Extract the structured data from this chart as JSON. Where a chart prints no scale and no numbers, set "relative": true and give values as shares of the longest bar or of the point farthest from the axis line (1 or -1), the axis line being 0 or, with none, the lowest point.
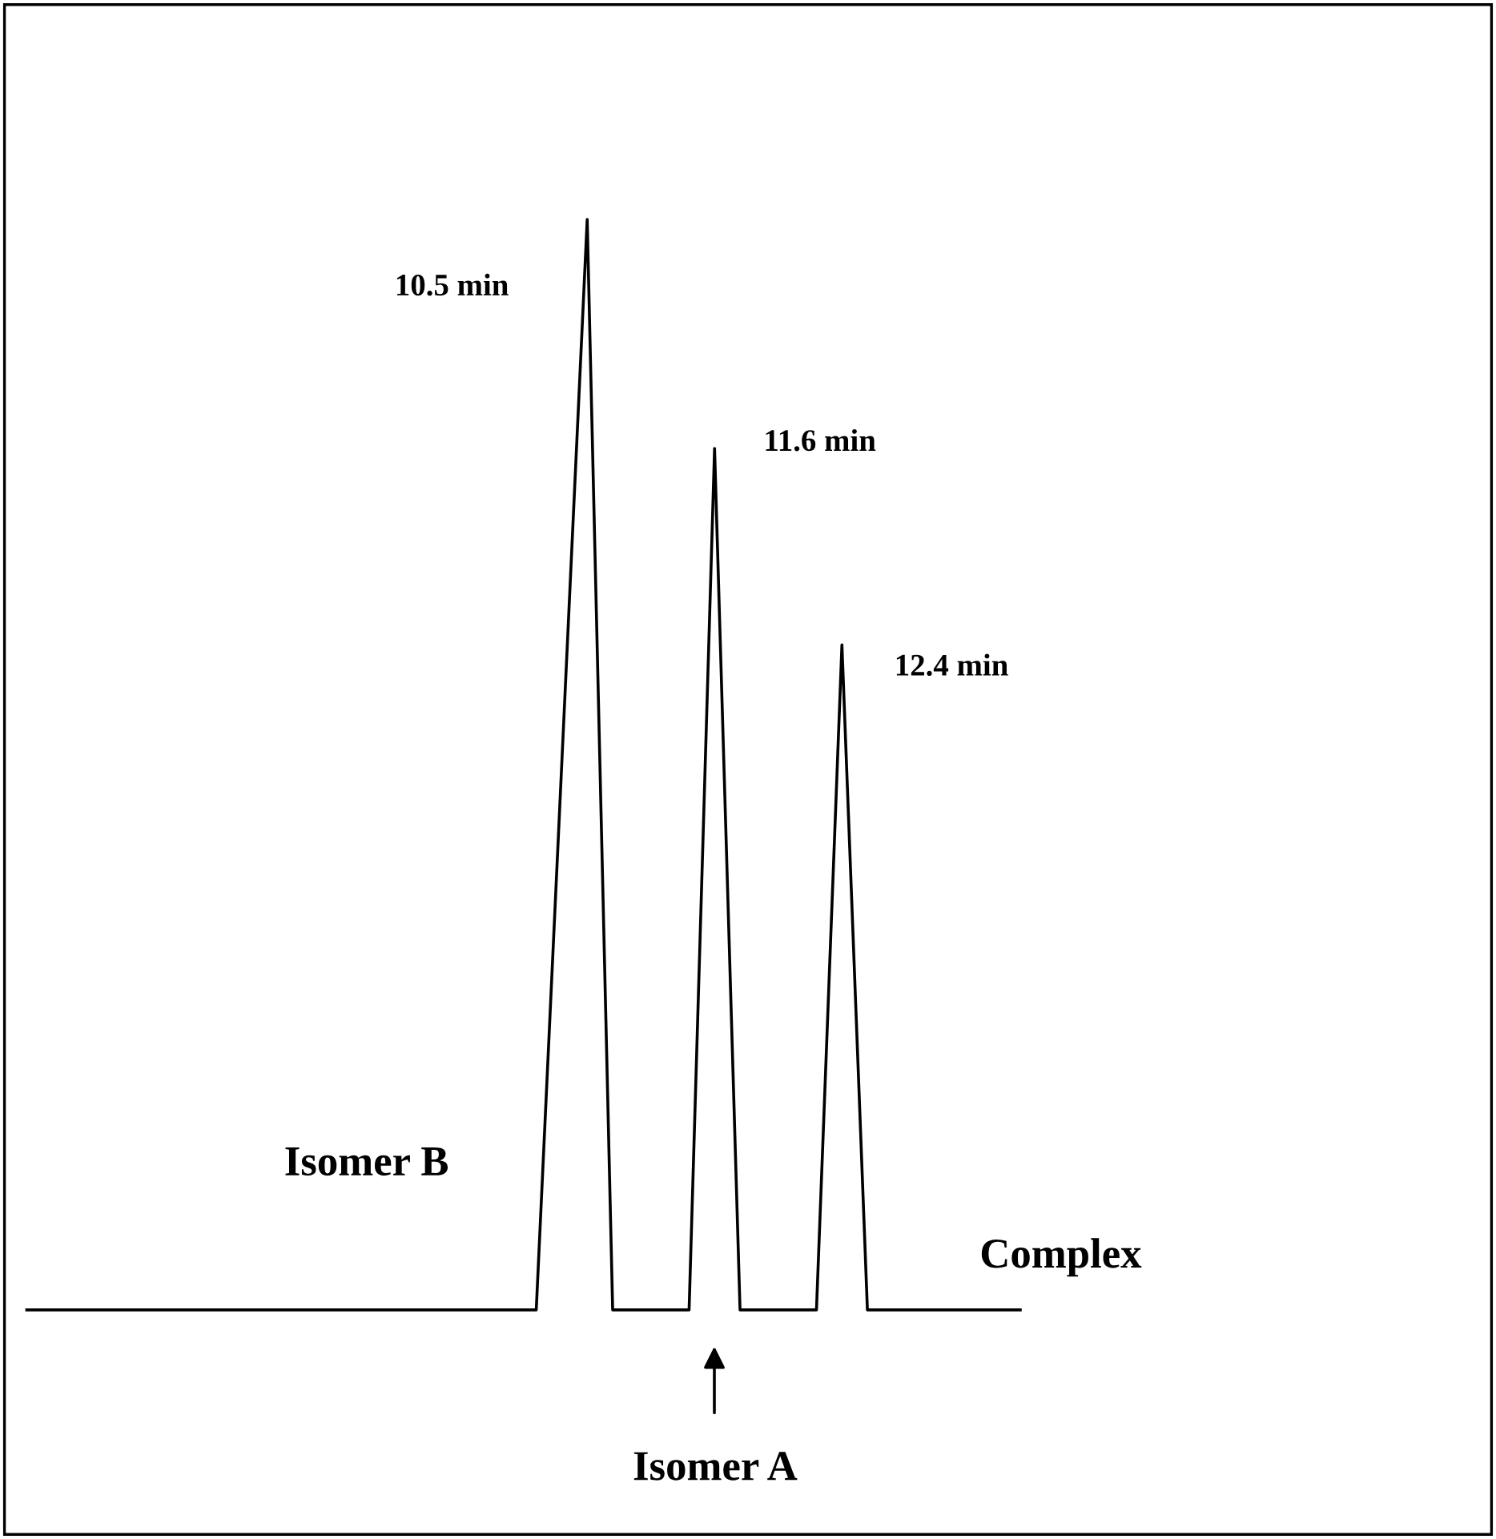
{
  "chart_data": {
    "type": "line",
    "relative": true,
    "categories": [
      null,
      null,
      null,
      null,
      null,
      null,
      null,
      null,
      null,
      null,
      null,
      null,
      null,
      null,
      null,
      null,
      null,
      null,
      null,
      null,
      null,
      null,
      null,
      null,
      null,
      null,
      null,
      null,
      null,
      null,
      null,
      null,
      null,
      null,
      null,
      null,
      null,
      null,
      null,
      null
    ],
    "series": [
      {
        "color": "#000000",
        "values": [
          0,
          0,
          0,
          0,
          0,
          0,
          0,
          0,
          0,
          0,
          0,
          0,
          0,
          0,
          0,
          0,
          0,
          0,
          0,
          0,
          0,
          0.5,
          1,
          0,
          0,
          0,
          0,
          0.79,
          0,
          0,
          0,
          0,
          0.61,
          0,
          0,
          0,
          0,
          0,
          0,
          0
        ]
      }
    ],
    "annotations": [
      "10.5 min",
      "11.6 min",
      "12.4 min",
      "Isomer B",
      "Complex",
      "Isomer A"
    ],
    "grid": false,
    "legend": false,
    "marker": "none",
    "line_style": "solid"
  }
}
